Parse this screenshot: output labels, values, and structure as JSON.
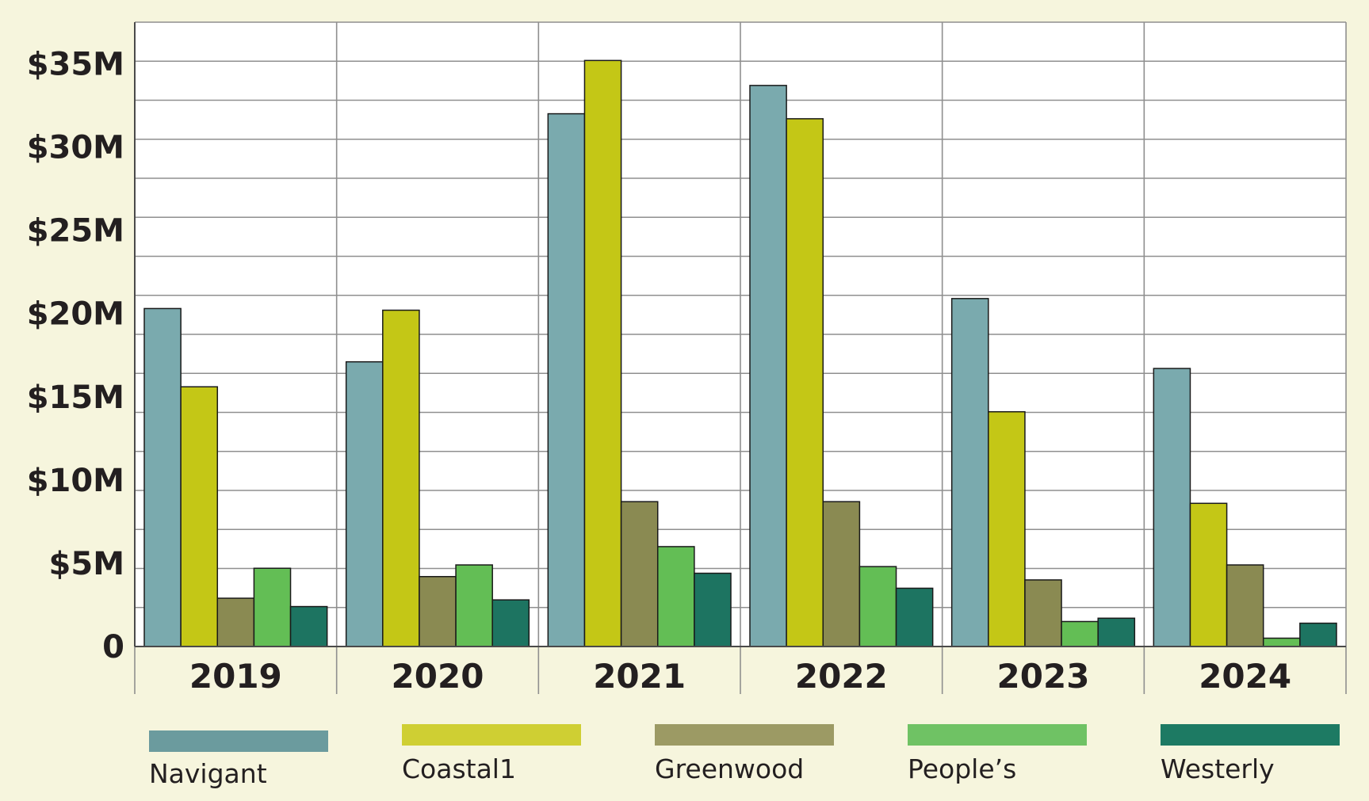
{
  "colors": {
    "background": "#f6f5dd",
    "plot_background": "#ffffff",
    "grid": "#8f8f8f",
    "axis": "#4a4a4a",
    "text": "#231f20"
  },
  "chart_data": {
    "type": "bar",
    "title": "",
    "xlabel": "",
    "ylabel": "",
    "categories": [
      "2019",
      "2020",
      "2021",
      "2022",
      "2023",
      "2024"
    ],
    "ylim": [
      0,
      37500000
    ],
    "yticks": [
      {
        "value": 0,
        "label": "0"
      },
      {
        "value": 5000000,
        "label": "$5M"
      },
      {
        "value": 10000000,
        "label": "$10M"
      },
      {
        "value": 15000000,
        "label": "$15M"
      },
      {
        "value": 20000000,
        "label": "$20M"
      },
      {
        "value": 25000000,
        "label": "$25M"
      },
      {
        "value": 30000000,
        "label": "$30M"
      },
      {
        "value": 35000000,
        "label": "$35M"
      }
    ],
    "grid": true,
    "legend_position": "bottom",
    "series": [
      {
        "name": "Navigant",
        "color": "#7aaaae",
        "legend_color": "#6b9b9e",
        "values": [
          20300000,
          17100000,
          32000000,
          33700000,
          20900000,
          16700000
        ]
      },
      {
        "name": "Coastal1",
        "color": "#c4c716",
        "legend_color": "#cfcf33",
        "values": [
          15600000,
          20200000,
          35200000,
          31700000,
          14100000,
          8600000
        ]
      },
      {
        "name": "Greenwood",
        "color": "#8a8a52",
        "legend_color": "#9c9a64",
        "values": [
          2900000,
          4200000,
          8700000,
          8700000,
          4000000,
          4900000
        ]
      },
      {
        "name": "People’s",
        "color": "#63be55",
        "legend_color": "#6fc264",
        "values": [
          4700000,
          4900000,
          6000000,
          4800000,
          1500000,
          500000
        ]
      },
      {
        "name": "Westerly",
        "color": "#1d7461",
        "legend_color": "#1d7a63",
        "values": [
          2400000,
          2800000,
          4400000,
          3500000,
          1700000,
          1400000
        ]
      }
    ]
  }
}
